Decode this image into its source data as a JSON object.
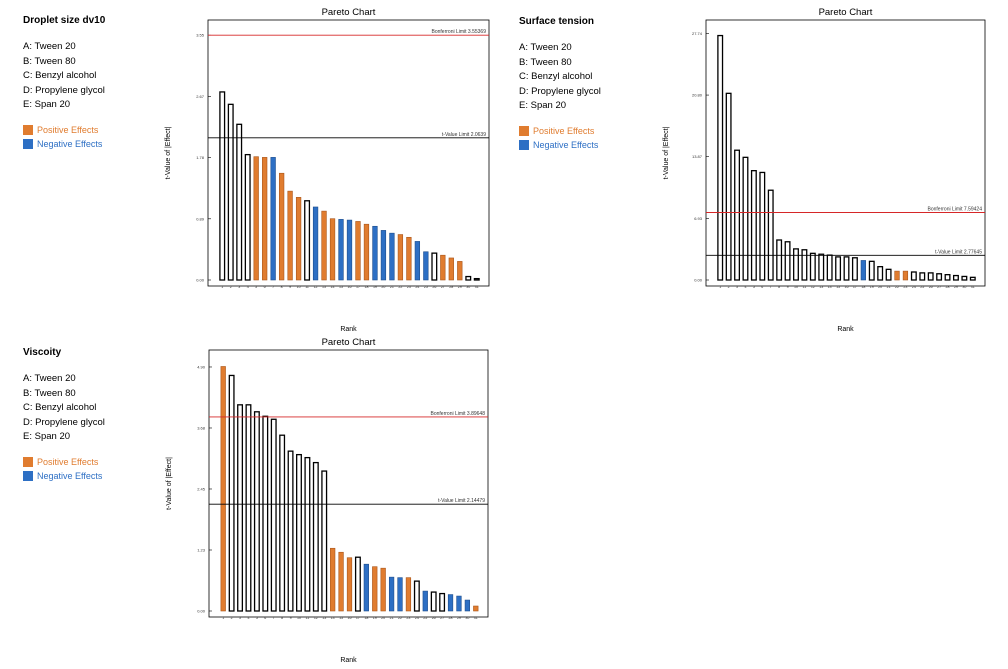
{
  "panels": [
    {
      "title": "Droplet size dv10",
      "factors": [
        "A: Tween 20",
        "B: Tween 80",
        "C: Benzyl alcohol",
        "D: Propylene glycol",
        "E: Span 20"
      ]
    },
    {
      "title": "Surface tension",
      "factors": [
        "A: Tween 20",
        "B: Tween 80",
        "C: Benzyl alcohol",
        "D: Propylene glycol",
        "E: Span 20"
      ]
    },
    {
      "title": "Viscoity",
      "factors": [
        "A: Tween 20",
        "B: Tween 80",
        "C: Benzyl alcohol",
        "D: Propylene glycol",
        "E: Span 20"
      ]
    }
  ],
  "legend": {
    "positive": "Positive Effects",
    "negative": "Negative Effects",
    "positive_color": "#e07c2f",
    "negative_color": "#2d6fc4"
  },
  "colors": {
    "selected_bar": "#ffffff",
    "bar_outline": "#000000",
    "bonferroni_line": "#d62728",
    "tvalue_line": "#000000"
  },
  "chart_data": [
    {
      "type": "bar",
      "title": "Pareto Chart",
      "xlabel": "Rank",
      "ylabel": "t-Value of |Effect|",
      "ylim": [
        0,
        3.6
      ],
      "yticks": [
        "0.00",
        "0.89",
        "1.78",
        "2.67",
        "3.55"
      ],
      "ytick_values": [
        0,
        0.8883,
        1.7766,
        2.6649,
        3.5532
      ],
      "categories": [
        "1",
        "2",
        "3",
        "4",
        "5",
        "6",
        "7",
        "8",
        "9",
        "10",
        "11",
        "12",
        "13",
        "14",
        "15",
        "16",
        "17",
        "18",
        "19",
        "20",
        "21",
        "22",
        "23",
        "24",
        "25",
        "26",
        "27",
        "28",
        "29",
        "30",
        "31"
      ],
      "values": [
        2.73,
        2.55,
        2.26,
        1.82,
        1.79,
        1.78,
        1.78,
        1.55,
        1.29,
        1.2,
        1.15,
        1.06,
        1.0,
        0.89,
        0.88,
        0.87,
        0.85,
        0.81,
        0.78,
        0.72,
        0.68,
        0.66,
        0.62,
        0.56,
        0.41,
        0.39,
        0.36,
        0.32,
        0.27,
        0.05,
        0.02
      ],
      "colors": [
        "selected",
        "selected",
        "selected",
        "selected",
        "positive",
        "positive",
        "negative",
        "positive",
        "positive",
        "positive",
        "selected",
        "negative",
        "positive",
        "positive",
        "negative",
        "negative",
        "positive",
        "positive",
        "negative",
        "negative",
        "negative",
        "positive",
        "positive",
        "negative",
        "negative",
        "selected",
        "positive",
        "positive",
        "positive",
        "selected",
        "selected"
      ],
      "lines": [
        {
          "label": "Bonferroni Limit 3.55369",
          "value": 3.55369,
          "kind": "bonferroni"
        },
        {
          "label": "t-Value Limit 2.0639",
          "value": 2.0639,
          "kind": "tvalue"
        }
      ]
    },
    {
      "type": "bar",
      "title": "Pareto Chart",
      "xlabel": "Rank",
      "ylabel": "t-Value of |Effect|",
      "ylim": [
        0,
        27.9
      ],
      "yticks": [
        "0.00",
        "6.93",
        "13.87",
        "20.80",
        "27.74"
      ],
      "ytick_values": [
        0,
        6.935,
        13.87,
        20.805,
        27.74
      ],
      "categories": [
        "1",
        "2",
        "3",
        "4",
        "5",
        "6",
        "7",
        "8",
        "9",
        "10",
        "11",
        "12",
        "13",
        "14",
        "15",
        "16",
        "17",
        "18",
        "19",
        "20",
        "21",
        "22",
        "23",
        "24",
        "25",
        "26",
        "27",
        "28",
        "29",
        "30",
        "31"
      ],
      "values": [
        27.5,
        21.0,
        14.6,
        13.8,
        12.3,
        12.1,
        10.1,
        4.5,
        4.3,
        3.5,
        3.4,
        3.0,
        2.9,
        2.8,
        2.6,
        2.6,
        2.5,
        2.2,
        2.1,
        1.5,
        1.2,
        1.0,
        1.0,
        0.9,
        0.8,
        0.8,
        0.7,
        0.6,
        0.5,
        0.4,
        0.3
      ],
      "colors": [
        "selected",
        "selected",
        "selected",
        "selected",
        "selected",
        "selected",
        "selected",
        "selected",
        "selected",
        "selected",
        "selected",
        "selected",
        "selected",
        "selected",
        "selected",
        "selected",
        "selected",
        "negative",
        "selected",
        "selected",
        "selected",
        "positive",
        "positive",
        "selected",
        "selected",
        "selected",
        "selected",
        "selected",
        "selected",
        "selected",
        "selected"
      ],
      "lines": [
        {
          "label": "Bonferroni Limit 7.59424",
          "value": 7.59424,
          "kind": "bonferroni"
        },
        {
          "label": "t-Value Limit 2.77645",
          "value": 2.77645,
          "kind": "tvalue"
        }
      ]
    },
    {
      "type": "bar",
      "title": "Pareto Chart",
      "xlabel": "Rank",
      "ylabel": "t-Value of |Effect|",
      "ylim": [
        0,
        5.0
      ],
      "yticks": [
        "0.00",
        "1.23",
        "2.45",
        "3.68",
        "4.90"
      ],
      "ytick_values": [
        0,
        1.225,
        2.45,
        3.675,
        4.9
      ],
      "categories": [
        "1",
        "2",
        "3",
        "4",
        "5",
        "6",
        "7",
        "8",
        "9",
        "10",
        "11",
        "12",
        "13",
        "14",
        "15",
        "16",
        "17",
        "18",
        "19",
        "20",
        "21",
        "22",
        "23",
        "24",
        "25",
        "26",
        "27",
        "28",
        "29",
        "30",
        "31"
      ],
      "values": [
        4.91,
        4.73,
        4.14,
        4.14,
        4.0,
        3.91,
        3.85,
        3.53,
        3.21,
        3.14,
        3.08,
        2.98,
        2.81,
        1.26,
        1.18,
        1.07,
        1.08,
        0.94,
        0.89,
        0.86,
        0.68,
        0.67,
        0.67,
        0.6,
        0.4,
        0.38,
        0.35,
        0.33,
        0.3,
        0.22,
        0.1
      ],
      "colors": [
        "positive",
        "selected",
        "selected",
        "selected",
        "selected",
        "selected",
        "selected",
        "selected",
        "selected",
        "selected",
        "selected",
        "selected",
        "selected",
        "positive",
        "positive",
        "positive",
        "selected",
        "negative",
        "positive",
        "positive",
        "negative",
        "negative",
        "positive",
        "selected",
        "negative",
        "selected",
        "selected",
        "negative",
        "negative",
        "negative",
        "positive"
      ],
      "lines": [
        {
          "label": "Bonferroni Limit 3.89648",
          "value": 3.89648,
          "kind": "bonferroni"
        },
        {
          "label": "t-Value Limit 2.14479",
          "value": 2.14479,
          "kind": "tvalue"
        }
      ]
    }
  ]
}
